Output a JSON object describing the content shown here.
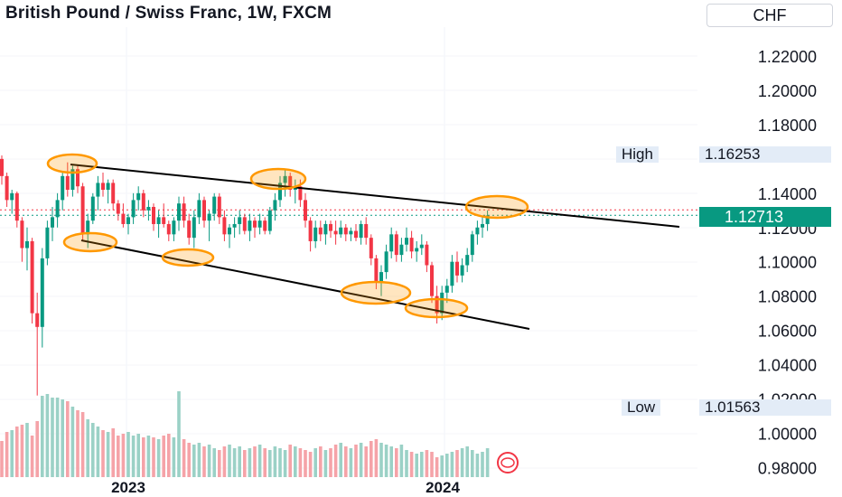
{
  "header": {
    "title": "British Pound / Swiss Franc, 1W, FXCM",
    "currency": "CHF"
  },
  "price_tags": {
    "high_label": "High",
    "high_value": "1.16253",
    "low_label": "Low",
    "low_value": "1.01563",
    "last_value": "1.12713"
  },
  "colors": {
    "up": "#089981",
    "down": "#f23645",
    "vol_up": "#9bd1c6",
    "vol_down": "#f5a3a8",
    "marker": "#ff9800",
    "line": "#000000"
  },
  "chart_data": {
    "type": "candlestick",
    "x_ticks": [
      "2023",
      "2024"
    ],
    "y_ticks": [
      "1.22000",
      "1.20000",
      "1.18000",
      "1.14000",
      "1.12000",
      "1.10000",
      "1.08000",
      "1.06000",
      "1.04000",
      "1.02000",
      "1.00000",
      "0.98000"
    ],
    "ylim": [
      0.975,
      1.2325
    ],
    "high": 1.16253,
    "low": 1.01563,
    "last": 1.12713,
    "candles": [
      [
        1.16,
        1.162,
        1.145,
        1.15
      ],
      [
        1.15,
        1.152,
        1.132,
        1.136
      ],
      [
        1.136,
        1.142,
        1.128,
        1.14
      ],
      [
        1.14,
        1.141,
        1.12,
        1.124
      ],
      [
        1.124,
        1.126,
        1.1,
        1.108
      ],
      [
        1.108,
        1.12,
        1.095,
        1.112
      ],
      [
        1.112,
        1.114,
        1.064,
        1.07
      ],
      [
        1.07,
        1.082,
        1.022,
        1.062
      ],
      [
        1.062,
        1.108,
        1.05,
        1.102
      ],
      [
        1.102,
        1.124,
        1.098,
        1.12
      ],
      [
        1.12,
        1.132,
        1.112,
        1.126
      ],
      [
        1.126,
        1.14,
        1.12,
        1.136
      ],
      [
        1.136,
        1.152,
        1.13,
        1.15
      ],
      [
        1.15,
        1.158,
        1.138,
        1.142
      ],
      [
        1.142,
        1.156,
        1.138,
        1.154
      ],
      [
        1.154,
        1.156,
        1.14,
        1.144
      ],
      [
        1.144,
        1.146,
        1.112,
        1.116
      ],
      [
        1.116,
        1.128,
        1.108,
        1.124
      ],
      [
        1.124,
        1.14,
        1.122,
        1.138
      ],
      [
        1.138,
        1.15,
        1.13,
        1.146
      ],
      [
        1.146,
        1.152,
        1.138,
        1.142
      ],
      [
        1.142,
        1.148,
        1.134,
        1.146
      ],
      [
        1.146,
        1.148,
        1.13,
        1.134
      ],
      [
        1.134,
        1.136,
        1.124,
        1.128
      ],
      [
        1.128,
        1.134,
        1.12,
        1.122
      ],
      [
        1.122,
        1.128,
        1.116,
        1.126
      ],
      [
        1.126,
        1.14,
        1.122,
        1.136
      ],
      [
        1.136,
        1.144,
        1.13,
        1.14
      ],
      [
        1.14,
        1.142,
        1.126,
        1.13
      ],
      [
        1.13,
        1.136,
        1.124,
        1.132
      ],
      [
        1.132,
        1.134,
        1.118,
        1.122
      ],
      [
        1.122,
        1.13,
        1.114,
        1.126
      ],
      [
        1.126,
        1.134,
        1.12,
        1.122
      ],
      [
        1.122,
        1.124,
        1.112,
        1.116
      ],
      [
        1.116,
        1.126,
        1.112,
        1.124
      ],
      [
        1.124,
        1.138,
        1.118,
        1.134
      ],
      [
        1.134,
        1.138,
        1.12,
        1.124
      ],
      [
        1.124,
        1.128,
        1.11,
        1.114
      ],
      [
        1.114,
        1.13,
        1.108,
        1.126
      ],
      [
        1.126,
        1.14,
        1.122,
        1.136
      ],
      [
        1.136,
        1.138,
        1.12,
        1.124
      ],
      [
        1.124,
        1.13,
        1.112,
        1.128
      ],
      [
        1.128,
        1.14,
        1.124,
        1.138
      ],
      [
        1.138,
        1.14,
        1.122,
        1.126
      ],
      [
        1.126,
        1.13,
        1.112,
        1.116
      ],
      [
        1.116,
        1.122,
        1.108,
        1.12
      ],
      [
        1.12,
        1.126,
        1.114,
        1.122
      ],
      [
        1.122,
        1.13,
        1.116,
        1.126
      ],
      [
        1.126,
        1.128,
        1.116,
        1.118
      ],
      [
        1.118,
        1.128,
        1.112,
        1.124
      ],
      [
        1.124,
        1.126,
        1.114,
        1.12
      ],
      [
        1.12,
        1.128,
        1.116,
        1.124
      ],
      [
        1.124,
        1.126,
        1.116,
        1.118
      ],
      [
        1.118,
        1.132,
        1.116,
        1.13
      ],
      [
        1.13,
        1.14,
        1.124,
        1.136
      ],
      [
        1.136,
        1.15,
        1.132,
        1.146
      ],
      [
        1.146,
        1.154,
        1.138,
        1.15
      ],
      [
        1.15,
        1.152,
        1.138,
        1.142
      ],
      [
        1.142,
        1.148,
        1.134,
        1.144
      ],
      [
        1.144,
        1.148,
        1.132,
        1.136
      ],
      [
        1.136,
        1.14,
        1.12,
        1.124
      ],
      [
        1.124,
        1.126,
        1.106,
        1.112
      ],
      [
        1.112,
        1.124,
        1.108,
        1.12
      ],
      [
        1.12,
        1.124,
        1.112,
        1.116
      ],
      [
        1.116,
        1.124,
        1.11,
        1.122
      ],
      [
        1.122,
        1.124,
        1.114,
        1.118
      ],
      [
        1.118,
        1.124,
        1.11,
        1.116
      ],
      [
        1.116,
        1.124,
        1.114,
        1.12
      ],
      [
        1.12,
        1.122,
        1.112,
        1.116
      ],
      [
        1.116,
        1.12,
        1.112,
        1.118
      ],
      [
        1.118,
        1.122,
        1.112,
        1.114
      ],
      [
        1.114,
        1.124,
        1.11,
        1.122
      ],
      [
        1.122,
        1.126,
        1.11,
        1.114
      ],
      [
        1.114,
        1.116,
        1.098,
        1.102
      ],
      [
        1.102,
        1.104,
        1.084,
        1.088
      ],
      [
        1.088,
        1.098,
        1.08,
        1.094
      ],
      [
        1.094,
        1.11,
        1.09,
        1.106
      ],
      [
        1.106,
        1.12,
        1.102,
        1.116
      ],
      [
        1.116,
        1.118,
        1.1,
        1.104
      ],
      [
        1.104,
        1.114,
        1.1,
        1.11
      ],
      [
        1.11,
        1.12,
        1.106,
        1.114
      ],
      [
        1.114,
        1.118,
        1.102,
        1.106
      ],
      [
        1.106,
        1.112,
        1.1,
        1.108
      ],
      [
        1.108,
        1.116,
        1.104,
        1.11
      ],
      [
        1.11,
        1.112,
        1.094,
        1.098
      ],
      [
        1.098,
        1.1,
        1.076,
        1.08
      ],
      [
        1.08,
        1.086,
        1.064,
        1.07
      ],
      [
        1.07,
        1.086,
        1.066,
        1.082
      ],
      [
        1.082,
        1.09,
        1.076,
        1.086
      ],
      [
        1.086,
        1.104,
        1.082,
        1.1
      ],
      [
        1.1,
        1.106,
        1.088,
        1.092
      ],
      [
        1.092,
        1.102,
        1.088,
        1.098
      ],
      [
        1.098,
        1.108,
        1.094,
        1.104
      ],
      [
        1.104,
        1.118,
        1.1,
        1.116
      ],
      [
        1.116,
        1.124,
        1.11,
        1.12
      ],
      [
        1.12,
        1.126,
        1.114,
        1.122
      ],
      [
        1.122,
        1.13,
        1.118,
        1.127
      ]
    ],
    "volumes": [
      40,
      50,
      52,
      56,
      58,
      60,
      46,
      62,
      90,
      92,
      88,
      88,
      86,
      84,
      78,
      74,
      72,
      64,
      60,
      56,
      52,
      50,
      54,
      46,
      48,
      50,
      46,
      48,
      44,
      46,
      44,
      42,
      46,
      48,
      44,
      95,
      42,
      38,
      36,
      38,
      34,
      36,
      32,
      30,
      34,
      36,
      32,
      34,
      30,
      32,
      34,
      36,
      32,
      30,
      34,
      32,
      30,
      36,
      34,
      32,
      30,
      28,
      32,
      34,
      30,
      32,
      36,
      38,
      34,
      32,
      36,
      38,
      34,
      40,
      42,
      38,
      36,
      34,
      32,
      36,
      30,
      28,
      26,
      28,
      30,
      28,
      22,
      24,
      26,
      28,
      30,
      32,
      34,
      30,
      26,
      28,
      32
    ]
  }
}
